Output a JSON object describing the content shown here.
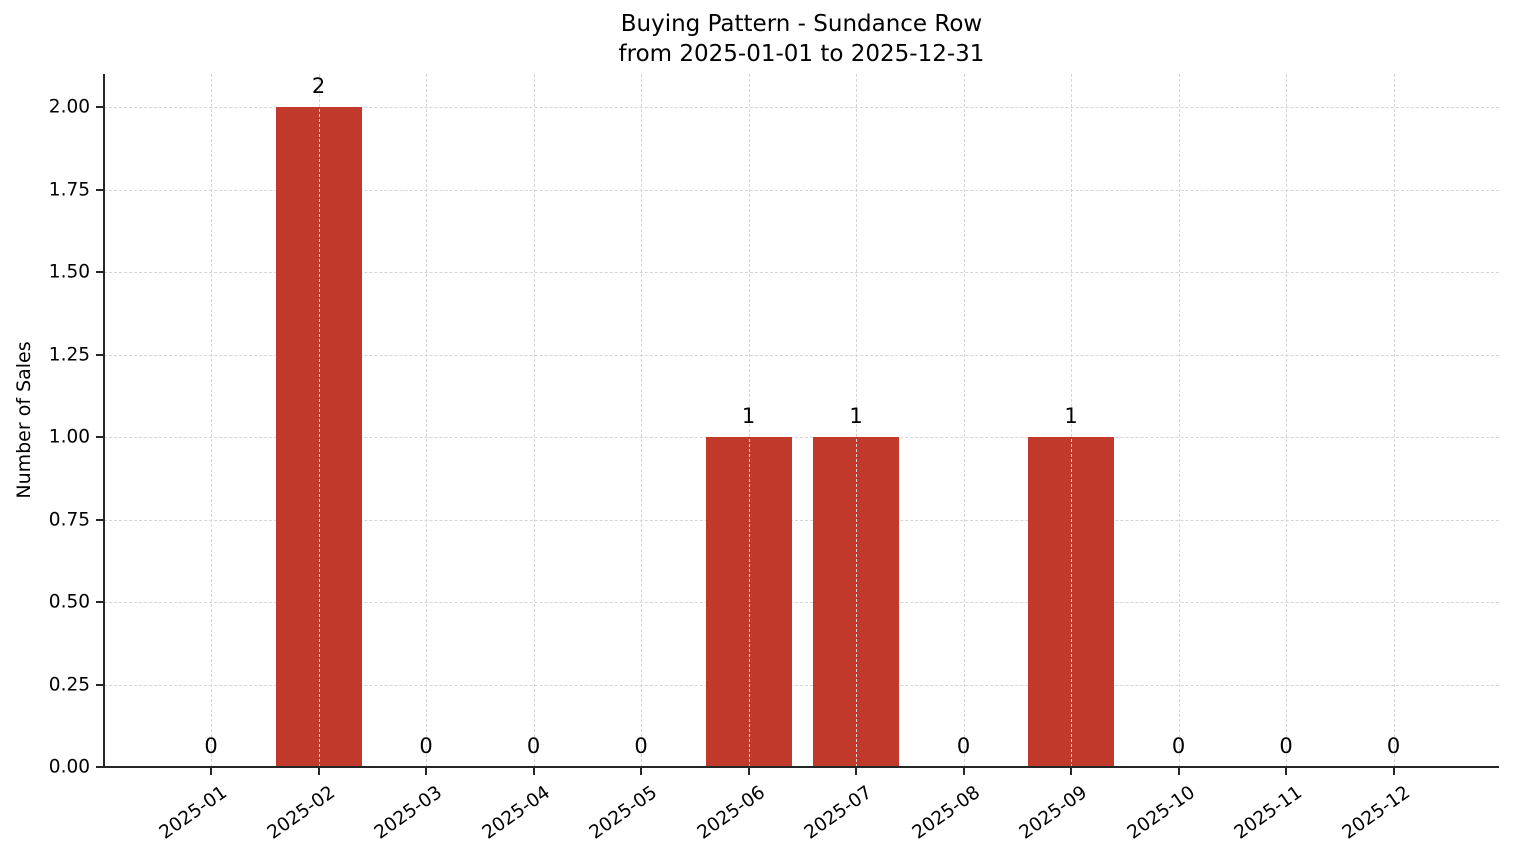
{
  "chart_data": {
    "type": "bar",
    "title": "Buying Pattern - Sundance Row",
    "subtitle": "from 2025-01-01 to 2025-12-31",
    "xlabel": "",
    "ylabel": "Number of Sales",
    "categories": [
      "2025-01",
      "2025-02",
      "2025-03",
      "2025-04",
      "2025-05",
      "2025-06",
      "2025-07",
      "2025-08",
      "2025-09",
      "2025-10",
      "2025-11",
      "2025-12"
    ],
    "values": [
      0,
      2,
      0,
      0,
      0,
      1,
      1,
      0,
      1,
      0,
      0,
      0
    ],
    "data_labels": [
      "0",
      "2",
      "0",
      "0",
      "0",
      "1",
      "1",
      "0",
      "1",
      "0",
      "0",
      "0"
    ],
    "yticks": [
      "0.00",
      "0.25",
      "0.50",
      "0.75",
      "1.00",
      "1.25",
      "1.50",
      "1.75",
      "2.00"
    ],
    "ylim": [
      0,
      2.1
    ],
    "grid": true,
    "legend": null,
    "bar_color": "#c0392b"
  }
}
